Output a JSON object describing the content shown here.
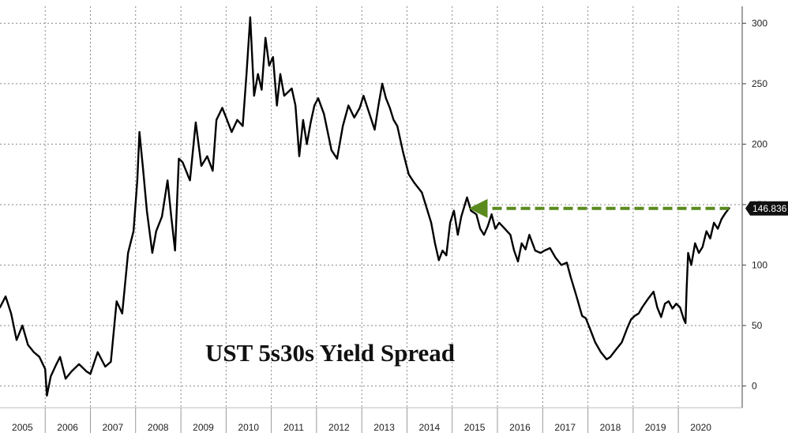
{
  "chart_data": {
    "type": "line",
    "title": "UST 5s30s Yield Spread",
    "xlabel": "",
    "ylabel": "",
    "x_ticks": [
      "2005",
      "2006",
      "2007",
      "2008",
      "2009",
      "2010",
      "2011",
      "2012",
      "2013",
      "2014",
      "2015",
      "2016",
      "2017",
      "2018",
      "2019",
      "2020"
    ],
    "y_ticks": [
      0,
      50,
      100,
      150,
      200,
      250,
      300
    ],
    "xlim": [
      "2005-01-01",
      "2021-05-31"
    ],
    "ylim": [
      -18,
      314
    ],
    "grid": true,
    "y_axis_position": "right",
    "last_value": "146.836",
    "series": [
      {
        "color": "#000000",
        "points": [
          [
            "2005-01-01",
            65
          ],
          [
            "2005-02-15",
            74
          ],
          [
            "2005-04-01",
            60
          ],
          [
            "2005-05-15",
            38
          ],
          [
            "2005-07-01",
            50
          ],
          [
            "2005-08-15",
            34
          ],
          [
            "2005-10-01",
            28
          ],
          [
            "2005-11-15",
            24
          ],
          [
            "2006-01-01",
            14
          ],
          [
            "2006-01-15",
            -8
          ],
          [
            "2006-02-15",
            8
          ],
          [
            "2006-04-01",
            18
          ],
          [
            "2006-05-01",
            24
          ],
          [
            "2006-06-15",
            6
          ],
          [
            "2006-08-01",
            12
          ],
          [
            "2006-10-01",
            18
          ],
          [
            "2006-12-01",
            12
          ],
          [
            "2007-01-01",
            10
          ],
          [
            "2007-03-01",
            28
          ],
          [
            "2007-05-01",
            16
          ],
          [
            "2007-06-15",
            20
          ],
          [
            "2007-08-01",
            70
          ],
          [
            "2007-09-15",
            60
          ],
          [
            "2007-11-01",
            110
          ],
          [
            "2007-12-15",
            128
          ],
          [
            "2008-01-15",
            170
          ],
          [
            "2008-02-01",
            210
          ],
          [
            "2008-03-01",
            180
          ],
          [
            "2008-04-01",
            145
          ],
          [
            "2008-05-15",
            110
          ],
          [
            "2008-06-15",
            128
          ],
          [
            "2008-08-01",
            140
          ],
          [
            "2008-09-15",
            170
          ],
          [
            "2008-10-15",
            140
          ],
          [
            "2008-11-15",
            112
          ],
          [
            "2008-12-15",
            188
          ],
          [
            "2009-01-15",
            185
          ],
          [
            "2009-03-15",
            170
          ],
          [
            "2009-05-01",
            218
          ],
          [
            "2009-06-15",
            182
          ],
          [
            "2009-08-01",
            190
          ],
          [
            "2009-09-15",
            178
          ],
          [
            "2009-10-15",
            220
          ],
          [
            "2009-12-01",
            230
          ],
          [
            "2010-01-01",
            222
          ],
          [
            "2010-02-15",
            210
          ],
          [
            "2010-04-01",
            220
          ],
          [
            "2010-05-15",
            215
          ],
          [
            "2010-06-15",
            258
          ],
          [
            "2010-07-15",
            305
          ],
          [
            "2010-08-15",
            240
          ],
          [
            "2010-09-15",
            258
          ],
          [
            "2010-10-15",
            245
          ],
          [
            "2010-11-15",
            288
          ],
          [
            "2010-12-15",
            265
          ],
          [
            "2011-01-15",
            272
          ],
          [
            "2011-02-15",
            232
          ],
          [
            "2011-03-15",
            258
          ],
          [
            "2011-04-15",
            240
          ],
          [
            "2011-06-15",
            246
          ],
          [
            "2011-07-15",
            232
          ],
          [
            "2011-08-15",
            190
          ],
          [
            "2011-09-15",
            220
          ],
          [
            "2011-10-15",
            200
          ],
          [
            "2011-11-15",
            218
          ],
          [
            "2011-12-15",
            232
          ],
          [
            "2012-01-15",
            238
          ],
          [
            "2012-03-01",
            225
          ],
          [
            "2012-05-01",
            195
          ],
          [
            "2012-06-15",
            188
          ],
          [
            "2012-08-01",
            215
          ],
          [
            "2012-09-15",
            232
          ],
          [
            "2012-11-01",
            222
          ],
          [
            "2012-12-15",
            230
          ],
          [
            "2013-01-15",
            240
          ],
          [
            "2013-03-01",
            226
          ],
          [
            "2013-04-15",
            212
          ],
          [
            "2013-05-15",
            232
          ],
          [
            "2013-06-15",
            250
          ],
          [
            "2013-07-15",
            238
          ],
          [
            "2013-08-15",
            230
          ],
          [
            "2013-09-15",
            220
          ],
          [
            "2013-10-15",
            215
          ],
          [
            "2013-12-01",
            193
          ],
          [
            "2014-01-15",
            175
          ],
          [
            "2014-03-01",
            168
          ],
          [
            "2014-05-01",
            160
          ],
          [
            "2014-06-15",
            145
          ],
          [
            "2014-07-15",
            135
          ],
          [
            "2014-08-15",
            118
          ],
          [
            "2014-09-15",
            104
          ],
          [
            "2014-10-15",
            112
          ],
          [
            "2014-11-15",
            108
          ],
          [
            "2014-12-15",
            135
          ],
          [
            "2015-01-15",
            145
          ],
          [
            "2015-02-15",
            125
          ],
          [
            "2015-03-15",
            140
          ],
          [
            "2015-05-01",
            156
          ],
          [
            "2015-06-01",
            145
          ],
          [
            "2015-07-15",
            142
          ],
          [
            "2015-08-15",
            130
          ],
          [
            "2015-09-15",
            125
          ],
          [
            "2015-10-15",
            132
          ],
          [
            "2015-11-15",
            142
          ],
          [
            "2015-12-15",
            130
          ],
          [
            "2016-01-15",
            135
          ],
          [
            "2016-03-01",
            130
          ],
          [
            "2016-04-15",
            125
          ],
          [
            "2016-05-15",
            112
          ],
          [
            "2016-06-15",
            103
          ],
          [
            "2016-07-15",
            118
          ],
          [
            "2016-08-15",
            113
          ],
          [
            "2016-09-15",
            125
          ],
          [
            "2016-11-01",
            112
          ],
          [
            "2016-12-15",
            110
          ],
          [
            "2017-01-15",
            112
          ],
          [
            "2017-03-01",
            114
          ],
          [
            "2017-04-15",
            106
          ],
          [
            "2017-06-01",
            100
          ],
          [
            "2017-07-15",
            102
          ],
          [
            "2017-08-15",
            90
          ],
          [
            "2017-10-01",
            74
          ],
          [
            "2017-11-15",
            58
          ],
          [
            "2017-12-15",
            56
          ],
          [
            "2018-01-15",
            48
          ],
          [
            "2018-03-01",
            36
          ],
          [
            "2018-04-15",
            28
          ],
          [
            "2018-06-01",
            22
          ],
          [
            "2018-07-01",
            24
          ],
          [
            "2018-08-15",
            30
          ],
          [
            "2018-10-01",
            36
          ],
          [
            "2018-11-15",
            48
          ],
          [
            "2018-12-15",
            55
          ],
          [
            "2019-01-15",
            58
          ],
          [
            "2019-02-15",
            60
          ],
          [
            "2019-03-15",
            65
          ],
          [
            "2019-05-01",
            72
          ],
          [
            "2019-06-15",
            78
          ],
          [
            "2019-07-15",
            65
          ],
          [
            "2019-08-15",
            57
          ],
          [
            "2019-09-15",
            68
          ],
          [
            "2019-10-15",
            70
          ],
          [
            "2019-11-15",
            64
          ],
          [
            "2019-12-15",
            68
          ],
          [
            "2020-01-15",
            65
          ],
          [
            "2020-02-15",
            55
          ],
          [
            "2020-02-28",
            52
          ],
          [
            "2020-03-08",
            80
          ],
          [
            "2020-03-20",
            110
          ],
          [
            "2020-04-15",
            100
          ],
          [
            "2020-05-15",
            118
          ],
          [
            "2020-06-15",
            110
          ],
          [
            "2020-07-15",
            115
          ],
          [
            "2020-08-15",
            128
          ],
          [
            "2020-09-15",
            122
          ],
          [
            "2020-10-15",
            135
          ],
          [
            "2020-11-15",
            130
          ],
          [
            "2020-12-15",
            138
          ],
          [
            "2021-01-15",
            143
          ],
          [
            "2021-02-15",
            147
          ]
        ]
      }
    ],
    "annotation": {
      "type": "dashed-arrow",
      "color": "#5a8a1e",
      "from": [
        "2021-02-15",
        146.836
      ],
      "to": [
        "2015-05-01",
        146.836
      ]
    }
  }
}
